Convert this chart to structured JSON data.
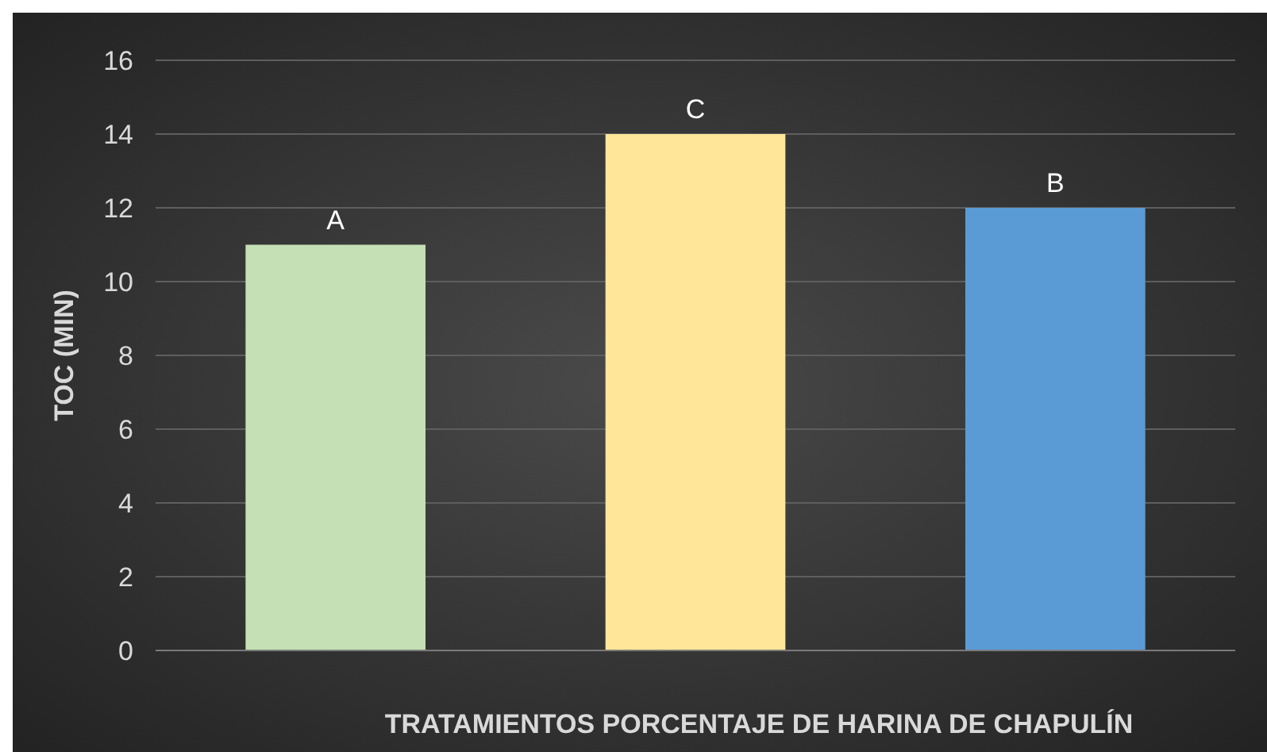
{
  "chart_data": {
    "type": "bar",
    "xlabel": "TRATAMIENTOS PORCENTAJE DE HARINA DE CHAPULÍN",
    "ylabel": "TOC (MIN)",
    "categories": [
      null,
      null,
      null
    ],
    "values": [
      11,
      14,
      12
    ],
    "colors": [
      "#c5e0b4",
      "#ffe699",
      "#5b9bd5"
    ],
    "value_labels": [
      "A",
      "C",
      "B"
    ],
    "ylim": [
      0,
      16
    ],
    "yticks": [
      0,
      2,
      4,
      6,
      8,
      10,
      12,
      14,
      16
    ],
    "grid": "y"
  }
}
